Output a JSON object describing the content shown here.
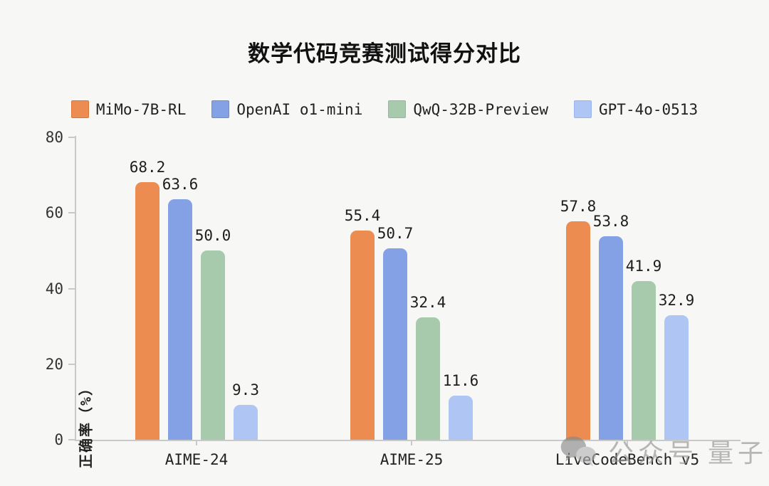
{
  "title": "数学代码竞赛测试得分对比",
  "chart_data": {
    "type": "bar",
    "title": "数学代码竞赛测试得分对比",
    "categories": [
      "AIME-24",
      "AIME-25",
      "LiveCodeBench v5"
    ],
    "series": [
      {
        "name": "MiMo-7B-RL",
        "color": "#EC8C50",
        "border": "#DA763B",
        "values": [
          68.2,
          55.4,
          57.8
        ]
      },
      {
        "name": "OpenAI o1-mini",
        "color": "#85A1E5",
        "border": "#6E8BD6",
        "values": [
          63.6,
          50.7,
          53.8
        ]
      },
      {
        "name": "QwQ-32B-Preview",
        "color": "#A6CAAB",
        "border": "#8FBB96",
        "values": [
          50.0,
          32.4,
          41.9
        ]
      },
      {
        "name": "GPT-4o-0513",
        "color": "#AFC5F4",
        "border": "#9AB4EF",
        "values": [
          9.3,
          11.6,
          32.9
        ]
      }
    ],
    "ylabel": "正确率（%）",
    "xlabel": "",
    "ylim": [
      0,
      80
    ],
    "yticks": [
      0,
      20,
      40,
      60,
      80
    ],
    "grid": false,
    "legend_position": "top",
    "value_labels": true,
    "value_label_format": "one-decimal"
  },
  "layout_colors": {
    "background": "#f7f7f5",
    "axis": "#c9c9c9",
    "text": "#222222",
    "value_label": "#1d1d1d"
  },
  "watermark": {
    "icon": "wechat-chat-bubbles-icon",
    "text_left": "公众号",
    "text_right": "量子位",
    "color": "#8f8f8f"
  }
}
